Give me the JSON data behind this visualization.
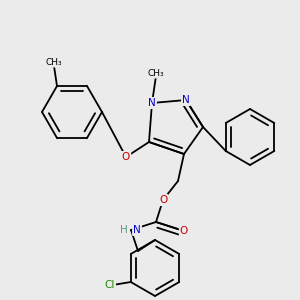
{
  "background_color": "#ebebeb",
  "figsize": [
    3.0,
    3.0
  ],
  "dpi": 100,
  "atom_colors": {
    "N": "#0000cc",
    "O": "#cc0000",
    "Cl": "#228800",
    "H": "#559988",
    "C": "#000000"
  },
  "bond_color": "#000000",
  "bond_width": 1.3,
  "font_size_atom": 7.5,
  "font_size_methyl": 6.5
}
